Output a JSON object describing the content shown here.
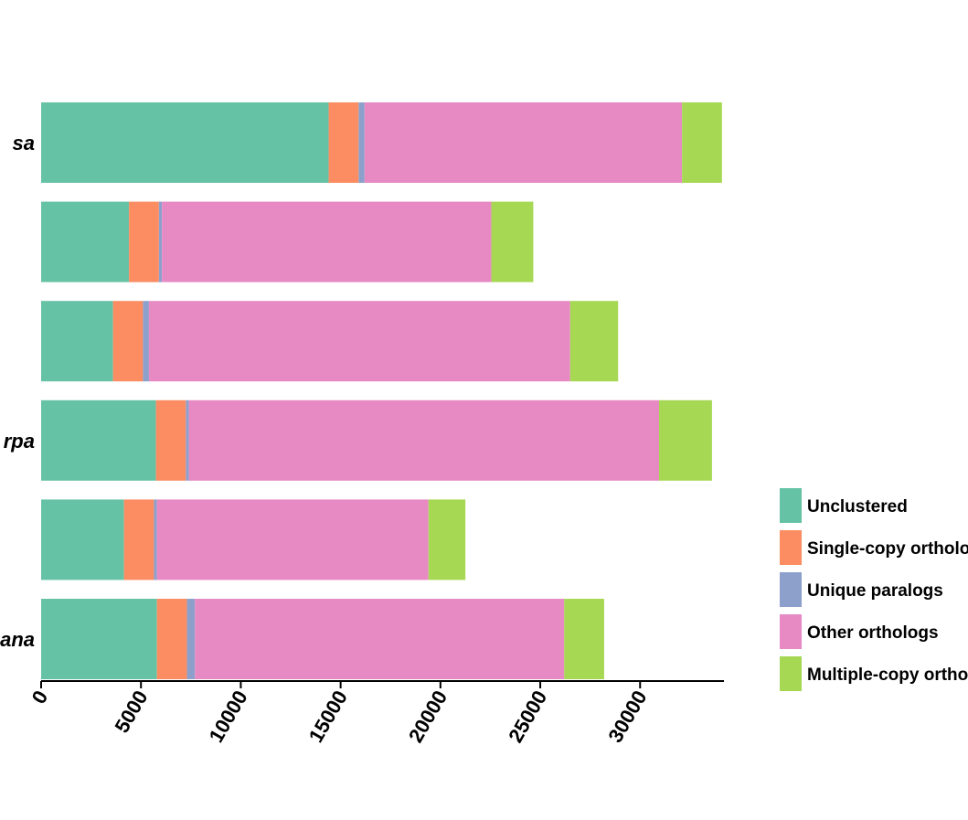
{
  "chart_data": {
    "type": "bar",
    "orientation": "horizontal",
    "stacked": true,
    "categories": [
      "sa",
      "",
      "",
      "rpa",
      "",
      "ana"
    ],
    "series": [
      {
        "name": "Unclustered",
        "color": "#66c2a5",
        "values": [
          14400,
          4400,
          3600,
          5750,
          4150,
          5800
        ]
      },
      {
        "name": "Single-copy orthologs",
        "color": "#fc8d62",
        "values": [
          1500,
          1500,
          1500,
          1500,
          1500,
          1500
        ]
      },
      {
        "name": "Unique paralogs",
        "color": "#8da0cb",
        "values": [
          300,
          150,
          300,
          150,
          150,
          400
        ]
      },
      {
        "name": "Other orthologs",
        "color": "#e78ac3",
        "values": [
          15900,
          16500,
          21100,
          23550,
          13600,
          18500
        ]
      },
      {
        "name": "Multiple-copy orthologs",
        "color": "#a6d854",
        "values": [
          2000,
          2100,
          2400,
          2650,
          1850,
          2000
        ]
      }
    ],
    "xticks": [
      0,
      5000,
      10000,
      15000,
      20000,
      25000,
      30000
    ],
    "xlim": [
      0,
      34200
    ],
    "grid": false,
    "legend_position": "right"
  }
}
